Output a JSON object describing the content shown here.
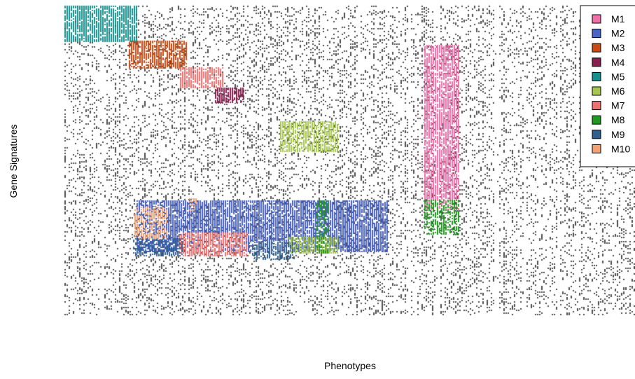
{
  "chart_data": {
    "type": "heatmap",
    "title": "",
    "xlabel": "Phenotypes",
    "ylabel": "Gene Signatures",
    "legend_position": "top-right",
    "background_noise": {
      "color": "#4d4d4d",
      "density": 0.17
    },
    "modules": [
      {
        "name": "M1",
        "color": "#F06EAA",
        "density": 0.85
      },
      {
        "name": "M2",
        "color": "#4A63C8",
        "density": 0.9
      },
      {
        "name": "M3",
        "color": "#CC4A10",
        "density": 0.85
      },
      {
        "name": "M4",
        "color": "#8B1E4E",
        "density": 0.85
      },
      {
        "name": "M5",
        "color": "#14908E",
        "density": 0.85
      },
      {
        "name": "M6",
        "color": "#A6C84A",
        "density": 0.8
      },
      {
        "name": "M7",
        "color": "#F07070",
        "density": 0.8
      },
      {
        "name": "M8",
        "color": "#1E9A1E",
        "density": 0.6
      },
      {
        "name": "M9",
        "color": "#2E5F8F",
        "density": 0.6
      },
      {
        "name": "M10",
        "color": "#F4A070",
        "density": 0.6
      }
    ]
  }
}
